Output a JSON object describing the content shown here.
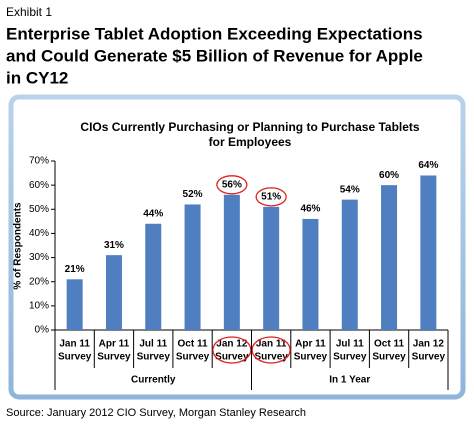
{
  "exhibit": "Exhibit 1",
  "headline": [
    "Enterprise Tablet Adoption Exceeding Expectations",
    "and Could Generate $5 Billion of Revenue for Apple",
    "in CY12"
  ],
  "source": "Source: January 2012 CIO Survey, Morgan Stanley Research",
  "chart_data": {
    "type": "bar",
    "title": [
      "CIOs Currently Purchasing or Planning to Purchase Tablets",
      "for Employees"
    ],
    "y_label": "% of Respondents",
    "categories": [
      [
        "Jan 11",
        "Survey"
      ],
      [
        "Apr 11",
        "Survey"
      ],
      [
        "Jul 11",
        "Survey"
      ],
      [
        "Oct 11",
        "Survey"
      ],
      [
        "Jan 12",
        "Survey"
      ],
      [
        "Jan 11",
        "Survey"
      ],
      [
        "Apr 11",
        "Survey"
      ],
      [
        "Jul 11",
        "Survey"
      ],
      [
        "Oct 11",
        "Survey"
      ],
      [
        "Jan 12",
        "Survey"
      ]
    ],
    "values": [
      21,
      31,
      44,
      52,
      56,
      51,
      46,
      54,
      60,
      64
    ],
    "value_labels": [
      "21%",
      "31%",
      "44%",
      "52%",
      "56%",
      "51%",
      "46%",
      "54%",
      "60%",
      "64%"
    ],
    "groups": [
      {
        "name": "Currently",
        "count": 5
      },
      {
        "name": "In 1 Year",
        "count": 5
      }
    ],
    "highlight": [
      4,
      5
    ],
    "color": "#4f7fc0",
    "ylim": [
      0,
      70
    ],
    "yticks": [
      {
        "value": 0,
        "label": "0%"
      },
      {
        "value": 10,
        "label": "10%"
      },
      {
        "value": 20,
        "label": "20%"
      },
      {
        "value": 30,
        "label": "30%"
      },
      {
        "value": 40,
        "label": "40%"
      },
      {
        "value": 50,
        "label": "50%"
      },
      {
        "value": 60,
        "label": "60%"
      },
      {
        "value": 70,
        "label": "70%"
      }
    ]
  }
}
